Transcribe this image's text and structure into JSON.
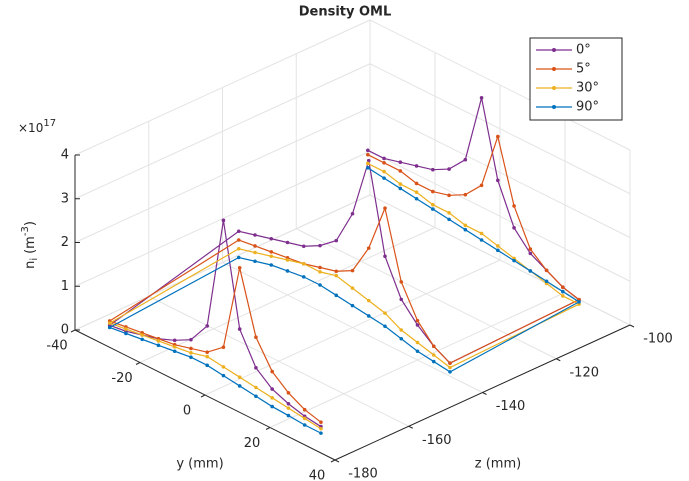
{
  "chart_data": {
    "type": "line3d",
    "title": "Density OML",
    "y_axis_label": "y (mm)",
    "z_axis_label": "z (mm)",
    "value_axis_label": {
      "symbol": "n",
      "subscript": "i",
      "unit_open": "(m",
      "unit_exponent": "-3",
      "unit_close": ")"
    },
    "value_scale": {
      "base": "×10",
      "exponent": "17"
    },
    "ylim": [
      -40,
      40
    ],
    "yticks": [
      -40,
      -20,
      0,
      20,
      40
    ],
    "zlim": [
      -180,
      -100
    ],
    "zticks": [
      -180,
      -160,
      -140,
      -120,
      -100
    ],
    "vlim": [
      0,
      4
    ],
    "vticks": [
      0,
      1,
      2,
      3,
      4
    ],
    "grid": true,
    "legend": "top-right",
    "y": [
      30,
      25,
      20,
      15,
      10,
      5,
      0,
      -5,
      -10,
      -15,
      -20,
      -25,
      -30,
      -35,
      -35,
      -30,
      -25,
      -20,
      -15,
      -10,
      -5,
      0,
      5,
      10,
      15,
      20,
      25,
      30,
      30,
      25,
      20,
      15,
      10,
      5,
      0,
      -5,
      -10,
      -15,
      -20,
      -25,
      -30,
      -35
    ],
    "z": [
      -175,
      -175,
      -175,
      -175,
      -175,
      -175,
      -175,
      -175,
      -175,
      -175,
      -175,
      -175,
      -175,
      -175,
      -140,
      -140,
      -140,
      -140,
      -140,
      -140,
      -140,
      -140,
      -140,
      -140,
      -140,
      -140,
      -140,
      -140,
      -105,
      -105,
      -105,
      -105,
      -105,
      -105,
      -105,
      -105,
      -105,
      -105,
      -105,
      -105,
      -105,
      -105
    ],
    "series": [
      {
        "name": "0°",
        "color": "#7e2f8e",
        "values": [
          0.2,
          0.25,
          0.35,
          0.5,
          0.8,
          1.5,
          3.8,
          1.2,
          0.7,
          0.5,
          0.35,
          0.25,
          0.15,
          0.1,
          0.9,
          1.0,
          1.1,
          1.2,
          1.3,
          1.5,
          1.8,
          2.6,
          4.0,
          2.0,
          1.2,
          0.8,
          0.5,
          0.3,
          0.4,
          0.5,
          0.7,
          0.9,
          1.3,
          2.2,
          3.9,
          2.3,
          1.9,
          1.7,
          1.6,
          1.5,
          1.4,
          1.4
        ]
      },
      {
        "name": "5°",
        "color": "#d95319",
        "values": [
          0.3,
          0.4,
          0.6,
          0.9,
          1.5,
          2.9,
          0.9,
          0.6,
          0.5,
          0.4,
          0.35,
          0.3,
          0.25,
          0.2,
          0.7,
          0.75,
          0.8,
          0.85,
          0.9,
          1.0,
          1.1,
          1.3,
          2.0,
          3.1,
          1.6,
          0.9,
          0.5,
          0.3,
          0.4,
          0.5,
          0.7,
          1.0,
          1.8,
          3.2,
          1.9,
          1.5,
          1.3,
          1.2,
          1.2,
          1.3,
          1.3,
          1.3
        ]
      },
      {
        "name": "30°",
        "color": "#edb120",
        "values": [
          0.15,
          0.2,
          0.25,
          0.3,
          0.35,
          0.4,
          0.45,
          0.5,
          0.4,
          0.35,
          0.3,
          0.25,
          0.2,
          0.15,
          0.5,
          0.6,
          0.7,
          0.8,
          0.9,
          0.9,
          1.0,
          0.9,
          0.8,
          0.7,
          0.5,
          0.4,
          0.3,
          0.2,
          0.3,
          0.3,
          0.4,
          0.5,
          0.6,
          0.7,
          0.8,
          0.8,
          0.9,
          0.9,
          1.0,
          1.0,
          1.1,
          1.1
        ]
      },
      {
        "name": "90°",
        "color": "#0072bd",
        "values": [
          0.05,
          0.05,
          0.08,
          0.1,
          0.15,
          0.2,
          0.25,
          0.3,
          0.3,
          0.25,
          0.2,
          0.15,
          0.1,
          0.05,
          0.3,
          0.4,
          0.5,
          0.55,
          0.6,
          0.6,
          0.55,
          0.5,
          0.45,
          0.4,
          0.3,
          0.2,
          0.15,
          0.1,
          0.35,
          0.4,
          0.45,
          0.5,
          0.55,
          0.6,
          0.65,
          0.7,
          0.75,
          0.8,
          0.85,
          0.9,
          0.95,
          1.0
        ]
      }
    ]
  }
}
